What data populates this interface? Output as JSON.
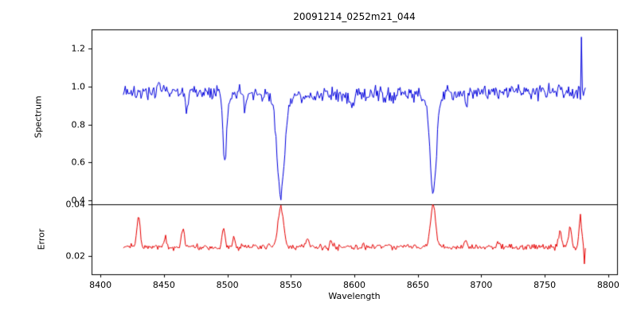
{
  "chart_data": {
    "type": "line",
    "title": "20091214_0252m21_044",
    "xlabel": "Wavelength",
    "grid": false,
    "legend": false,
    "xlim": [
      8393,
      8807
    ],
    "xticks": [
      8400,
      8450,
      8500,
      8550,
      8600,
      8650,
      8700,
      8750,
      8800
    ],
    "xtick_labels": [
      "8400",
      "8450",
      "8500",
      "8550",
      "8600",
      "8650",
      "8700",
      "8750",
      "8800"
    ],
    "x_data_range": [
      8418,
      8782
    ],
    "panels": [
      {
        "name": "spectrum",
        "ylabel": "Spectrum",
        "color": "#0000dd",
        "ylim": [
          0.38,
          1.3
        ],
        "yticks": [
          0.4,
          0.6,
          0.8,
          1.0,
          1.2
        ],
        "ytick_labels": [
          "0.4",
          "0.6",
          "0.8",
          "1.0",
          "1.2"
        ],
        "continuum_level": 0.965,
        "noise_sigma": 0.02,
        "absorption_lines": [
          {
            "center": 8468.0,
            "min_flux": 0.875,
            "width": 1.0
          },
          {
            "center": 8498.0,
            "min_flux": 0.595,
            "width": 1.6
          },
          {
            "center": 8514.0,
            "min_flux": 0.885,
            "width": 1.0
          },
          {
            "center": 8542.1,
            "min_flux": 0.42,
            "width": 3.0
          },
          {
            "center": 8598.0,
            "min_flux": 0.9,
            "width": 1.0
          },
          {
            "center": 8662.1,
            "min_flux": 0.44,
            "width": 2.6
          },
          {
            "center": 8688.0,
            "min_flux": 0.9,
            "width": 1.0
          }
        ],
        "emission_spike": {
          "center": 8779.0,
          "peak_flux": 1.26
        }
      },
      {
        "name": "error",
        "ylabel": "Error",
        "color": "#e60000",
        "ylim": [
          0.013,
          0.04
        ],
        "yticks": [
          0.02,
          0.04
        ],
        "ytick_labels": [
          "0.02",
          "0.04"
        ],
        "baseline": 0.0235,
        "noise_sigma": 0.0006,
        "peaks": [
          {
            "center": 8430,
            "height": 0.0355,
            "width": 1.2
          },
          {
            "center": 8451,
            "height": 0.0275,
            "width": 1.0
          },
          {
            "center": 8465,
            "height": 0.0305,
            "width": 1.2
          },
          {
            "center": 8497,
            "height": 0.03,
            "width": 1.2
          },
          {
            "center": 8505,
            "height": 0.027,
            "width": 1.0
          },
          {
            "center": 8542,
            "height": 0.039,
            "width": 2.2
          },
          {
            "center": 8563,
            "height": 0.0265,
            "width": 1.2
          },
          {
            "center": 8582,
            "height": 0.0258,
            "width": 1.0
          },
          {
            "center": 8662,
            "height": 0.0398,
            "width": 2.0
          },
          {
            "center": 8688,
            "height": 0.0262,
            "width": 1.0
          },
          {
            "center": 8713,
            "height": 0.0258,
            "width": 1.0
          },
          {
            "center": 8762,
            "height": 0.0295,
            "width": 1.2
          },
          {
            "center": 8770,
            "height": 0.031,
            "width": 1.2
          },
          {
            "center": 8778,
            "height": 0.036,
            "width": 1.0
          }
        ],
        "down_spike": {
          "center": 8781,
          "min_value": 0.017
        }
      }
    ]
  }
}
